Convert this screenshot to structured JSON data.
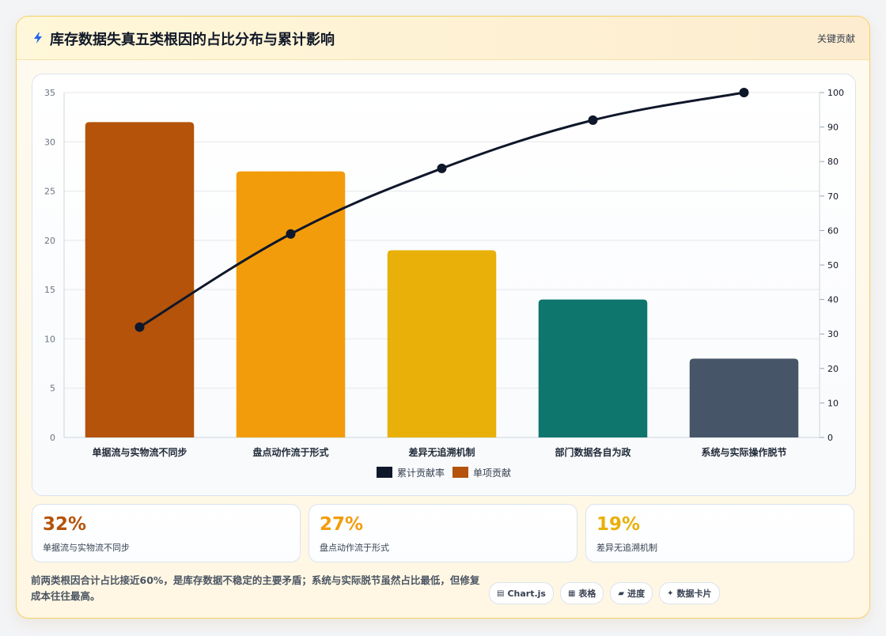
{
  "header": {
    "title": "库存数据失真五类根因的占比分布与累计影响",
    "tag": "关键贡献",
    "icon": "lightning-icon"
  },
  "chart_data": {
    "type": "bar",
    "title": "",
    "categories": [
      "单据流与实物流不同步",
      "盘点动作流于形式",
      "差异无追溯机制",
      "部门数据各自为政",
      "系统与实际操作脱节"
    ],
    "series": [
      {
        "name": "单项贡献",
        "type": "bar",
        "axis": "left",
        "values": [
          32,
          27,
          19,
          14,
          8
        ],
        "colors": [
          "#b45309",
          "#f39c0b",
          "#e8b008",
          "#0f766e",
          "#475569"
        ]
      },
      {
        "name": "累计贡献率",
        "type": "line",
        "axis": "right",
        "values": [
          32,
          59,
          78,
          92,
          100
        ],
        "color": "#0f172a"
      }
    ],
    "y_left": {
      "min": 0,
      "max": 35,
      "ticks": [
        "0",
        "5",
        "10",
        "15",
        "20",
        "25",
        "30",
        "35"
      ]
    },
    "y_right": {
      "min": 0,
      "max": 100,
      "ticks": [
        "0",
        "10",
        "20",
        "30",
        "40",
        "50",
        "60",
        "70",
        "80",
        "90",
        "100"
      ]
    },
    "xlabel": "",
    "ylabel": "",
    "grid": true,
    "legend_position": "bottom",
    "legend": [
      {
        "label": "累计贡献率",
        "color": "#0f172a"
      },
      {
        "label": "单项贡献",
        "color": "#b45309"
      }
    ]
  },
  "stats": [
    {
      "value": "32%",
      "label": "单据流与实物流不同步",
      "color": "#b45309"
    },
    {
      "value": "27%",
      "label": "盘点动作流于形式",
      "color": "#f39c0b"
    },
    {
      "value": "19%",
      "label": "差异无追溯机制",
      "color": "#e8b008"
    }
  ],
  "footnote": "前两类根因合计占比接近60%，是库存数据不稳定的主要矛盾；系统与实际脱节虽然占比最低，但修复成本往往最高。",
  "chips": [
    {
      "icon": "▤",
      "label": "Chart.js"
    },
    {
      "icon": "▦",
      "label": "表格"
    },
    {
      "icon": "▰",
      "label": "进度"
    },
    {
      "icon": "✦",
      "label": "数据卡片"
    }
  ]
}
